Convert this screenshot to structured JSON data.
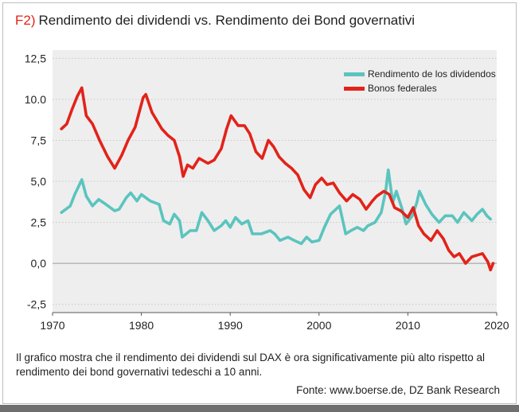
{
  "title": {
    "code": "F2)",
    "text": "Rendimento dei dividendi vs. Rendimento dei Bond governativi"
  },
  "caption": "Il grafico mostra che il rendimento dei dividendi sul DAX è ora significativamente più alto rispetto al rendimento dei bond governativi tedeschi a 10 anni.",
  "source": "Fonte: www.boerse.de, DZ Bank Research",
  "chart_data": {
    "type": "line",
    "title": "Rendimento dei dividendi vs. Rendimento dei Bond governativi",
    "xlabel": "",
    "ylabel": "",
    "xlim": [
      1970,
      2020
    ],
    "ylim": [
      -3,
      13
    ],
    "x_ticks": [
      1970,
      1980,
      1990,
      2000,
      2010,
      2020
    ],
    "x_tick_labels": [
      "1970",
      "1980",
      "1990",
      "2000",
      "2010",
      "2020"
    ],
    "y_ticks": [
      12.5,
      10,
      7.5,
      5,
      2.5,
      0,
      -2.5
    ],
    "y_tick_labels": [
      "12,5",
      "10.0",
      "7,5",
      "5,0",
      "2,5",
      "0,0",
      "-2,5"
    ],
    "grid": true,
    "legend_position": "top-right",
    "series": [
      {
        "name": "Rendimento de los dividendos",
        "color": "#5bc4be",
        "points": [
          [
            1971,
            3.1
          ],
          [
            1972,
            3.5
          ],
          [
            1972.5,
            4.2
          ],
          [
            1973.3,
            5.1
          ],
          [
            1973.8,
            4.1
          ],
          [
            1974.5,
            3.5
          ],
          [
            1975.2,
            3.9
          ],
          [
            1976,
            3.6
          ],
          [
            1977,
            3.2
          ],
          [
            1977.5,
            3.3
          ],
          [
            1978.3,
            4.0
          ],
          [
            1978.8,
            4.3
          ],
          [
            1979.5,
            3.8
          ],
          [
            1980,
            4.2
          ],
          [
            1981,
            3.8
          ],
          [
            1982,
            3.6
          ],
          [
            1982.5,
            2.6
          ],
          [
            1983.2,
            2.4
          ],
          [
            1983.7,
            3.0
          ],
          [
            1984.3,
            2.6
          ],
          [
            1984.6,
            1.6
          ],
          [
            1985.5,
            2.0
          ],
          [
            1986.2,
            2.0
          ],
          [
            1986.8,
            3.1
          ],
          [
            1987.5,
            2.6
          ],
          [
            1988.2,
            2.0
          ],
          [
            1989,
            2.3
          ],
          [
            1989.5,
            2.6
          ],
          [
            1990,
            2.2
          ],
          [
            1990.6,
            2.8
          ],
          [
            1991.3,
            2.4
          ],
          [
            1992,
            2.6
          ],
          [
            1992.5,
            1.8
          ],
          [
            1993.5,
            1.8
          ],
          [
            1994.5,
            2.0
          ],
          [
            1995,
            1.8
          ],
          [
            1995.6,
            1.4
          ],
          [
            1996.5,
            1.6
          ],
          [
            1997.2,
            1.4
          ],
          [
            1998,
            1.2
          ],
          [
            1998.6,
            1.6
          ],
          [
            1999.2,
            1.3
          ],
          [
            2000,
            1.4
          ],
          [
            2000.6,
            2.2
          ],
          [
            2001.3,
            3.0
          ],
          [
            2002.3,
            3.5
          ],
          [
            2003,
            1.8
          ],
          [
            2003.6,
            2.0
          ],
          [
            2004.3,
            2.2
          ],
          [
            2005,
            2.0
          ],
          [
            2005.5,
            2.3
          ],
          [
            2006.3,
            2.5
          ],
          [
            2007,
            3.1
          ],
          [
            2007.5,
            4.4
          ],
          [
            2007.8,
            5.7
          ],
          [
            2008.3,
            3.7
          ],
          [
            2008.7,
            4.4
          ],
          [
            2009.3,
            3.4
          ],
          [
            2009.8,
            2.4
          ],
          [
            2010.5,
            2.9
          ],
          [
            2011,
            3.7
          ],
          [
            2011.3,
            4.4
          ],
          [
            2012,
            3.6
          ],
          [
            2012.7,
            3.0
          ],
          [
            2013.5,
            2.5
          ],
          [
            2014.2,
            2.9
          ],
          [
            2015,
            2.9
          ],
          [
            2015.6,
            2.5
          ],
          [
            2016.3,
            3.1
          ],
          [
            2017.2,
            2.6
          ],
          [
            2017.8,
            3.0
          ],
          [
            2018.4,
            3.3
          ],
          [
            2018.9,
            2.9
          ],
          [
            2019.3,
            2.7
          ]
        ]
      },
      {
        "name": "Bonos federales",
        "color": "#e2231a",
        "points": [
          [
            1971,
            8.2
          ],
          [
            1971.6,
            8.5
          ],
          [
            1972.2,
            9.4
          ],
          [
            1972.8,
            10.2
          ],
          [
            1973.3,
            10.7
          ],
          [
            1973.8,
            9.0
          ],
          [
            1974.5,
            8.5
          ],
          [
            1975.3,
            7.5
          ],
          [
            1976.2,
            6.5
          ],
          [
            1977,
            5.8
          ],
          [
            1977.8,
            6.6
          ],
          [
            1978.5,
            7.5
          ],
          [
            1979.3,
            8.3
          ],
          [
            1980.2,
            10.1
          ],
          [
            1980.5,
            10.3
          ],
          [
            1981.2,
            9.2
          ],
          [
            1982.3,
            8.2
          ],
          [
            1983,
            7.8
          ],
          [
            1983.7,
            7.5
          ],
          [
            1984.3,
            6.5
          ],
          [
            1984.7,
            5.3
          ],
          [
            1985.2,
            6.0
          ],
          [
            1985.8,
            5.8
          ],
          [
            1986.5,
            6.4
          ],
          [
            1987.5,
            6.1
          ],
          [
            1988.2,
            6.3
          ],
          [
            1989,
            7.0
          ],
          [
            1989.6,
            8.2
          ],
          [
            1990.1,
            9.0
          ],
          [
            1990.9,
            8.4
          ],
          [
            1991.6,
            8.4
          ],
          [
            1992.2,
            7.9
          ],
          [
            1992.9,
            6.8
          ],
          [
            1993.6,
            6.4
          ],
          [
            1994.3,
            7.5
          ],
          [
            1994.9,
            7.1
          ],
          [
            1995.5,
            6.5
          ],
          [
            1996.2,
            6.1
          ],
          [
            1996.9,
            5.8
          ],
          [
            1997.6,
            5.4
          ],
          [
            1998.3,
            4.5
          ],
          [
            1999,
            4.0
          ],
          [
            1999.6,
            4.8
          ],
          [
            2000.3,
            5.2
          ],
          [
            2000.9,
            4.8
          ],
          [
            2001.6,
            4.9
          ],
          [
            2002.3,
            4.3
          ],
          [
            2003.1,
            3.8
          ],
          [
            2003.8,
            4.2
          ],
          [
            2004.6,
            3.9
          ],
          [
            2005.3,
            3.3
          ],
          [
            2006,
            3.8
          ],
          [
            2006.5,
            4.1
          ],
          [
            2007.3,
            4.4
          ],
          [
            2007.9,
            4.2
          ],
          [
            2008.5,
            3.4
          ],
          [
            2009.2,
            3.2
          ],
          [
            2010,
            2.8
          ],
          [
            2010.6,
            3.4
          ],
          [
            2011.2,
            2.3
          ],
          [
            2011.8,
            1.8
          ],
          [
            2012.6,
            1.4
          ],
          [
            2013.3,
            2.0
          ],
          [
            2014,
            1.5
          ],
          [
            2014.6,
            0.8
          ],
          [
            2015.2,
            0.4
          ],
          [
            2015.8,
            0.6
          ],
          [
            2016.5,
            0.0
          ],
          [
            2017.2,
            0.4
          ],
          [
            2017.8,
            0.5
          ],
          [
            2018.4,
            0.6
          ],
          [
            2019,
            0.1
          ],
          [
            2019.3,
            -0.4
          ],
          [
            2019.6,
            0.0
          ]
        ]
      }
    ]
  }
}
